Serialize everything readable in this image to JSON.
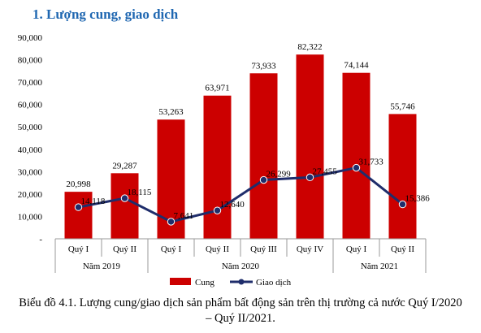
{
  "heading": "1. Lượng cung, giao dịch",
  "caption": "Biểu đồ 4.1. Lượng cung/giao dịch sản phẩm bất động sản trên thị trường cả nước Quý I/2020 – Quý II/2021.",
  "colors": {
    "supply_bar": "#cc0000",
    "transaction_line": "#1f2d6b",
    "heading": "#1f67b1"
  },
  "chart_data": {
    "type": "bar",
    "title": "",
    "categories": [
      "Quý I",
      "Quý II",
      "Quý I",
      "Quý II",
      "Quý III",
      "Quý IV",
      "Quý I",
      "Quý II"
    ],
    "groups": [
      {
        "label": "Năm 2019",
        "count": 2
      },
      {
        "label": "Năm 2020",
        "count": 4
      },
      {
        "label": "Năm 2021",
        "count": 2
      }
    ],
    "series": [
      {
        "name": "Cung",
        "type": "bar",
        "values": [
          20998,
          29287,
          53263,
          63971,
          73933,
          82322,
          74144,
          55746
        ],
        "labels": [
          "20,998",
          "29,287",
          "53,263",
          "63,971",
          "73,933",
          "82,322",
          "74,144",
          "55,746"
        ]
      },
      {
        "name": "Giao dịch",
        "type": "line",
        "values": [
          14118,
          18115,
          7641,
          12640,
          26299,
          27455,
          31733,
          15386
        ],
        "labels": [
          "14,118",
          "18,115",
          "7,641",
          "12,640",
          "26,299",
          "27,455",
          "31,733",
          "15,386"
        ]
      }
    ],
    "yticks": [
      "-",
      "10,000",
      "20,000",
      "30,000",
      "40,000",
      "50,000",
      "60,000",
      "70,000",
      "80,000",
      "90,000"
    ],
    "ylim": [
      0,
      90000
    ],
    "legend_position": "bottom",
    "grid": false
  }
}
